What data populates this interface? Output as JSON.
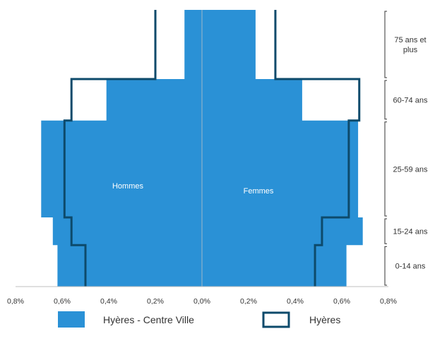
{
  "chart_data": {
    "type": "population-pyramid",
    "x_ticks": [
      "0,8%",
      "0,6%",
      "0,4%",
      "0,2%",
      "0,0%",
      "0,2%",
      "0,4%",
      "0,6%",
      "0,8%"
    ],
    "xlim": [
      -0.8,
      0.8
    ],
    "side_labels": {
      "left": "Hommes",
      "right": "Femmes"
    },
    "age_groups": [
      {
        "label": "75 ans et plus",
        "y_from": 75,
        "y_to": 100
      },
      {
        "label": "60-74 ans",
        "y_from": 60,
        "y_to": 75
      },
      {
        "label": "25-59 ans",
        "y_from": 25,
        "y_to": 60
      },
      {
        "label": "15-24 ans",
        "y_from": 15,
        "y_to": 25
      },
      {
        "label": "0-14 ans",
        "y_from": 0,
        "y_to": 15
      }
    ],
    "series": [
      {
        "name": "Hyères - Centre Ville",
        "style": "filled",
        "color": "#2a91d6",
        "men": [
          0.62,
          0.62,
          0.64,
          0.64,
          0.69,
          0.69,
          0.41,
          0.41,
          0.075,
          0.075
        ],
        "women": [
          0.62,
          0.62,
          0.69,
          0.69,
          0.67,
          0.67,
          0.43,
          0.43,
          0.23,
          0.23
        ]
      },
      {
        "name": "Hyères",
        "style": "outline",
        "color": "#0d4a6b",
        "men": [
          0.5,
          0.5,
          0.56,
          0.56,
          0.59,
          0.59,
          0.56,
          0.56,
          0.2,
          0.2
        ],
        "women": [
          0.485,
          0.485,
          0.515,
          0.515,
          0.63,
          0.63,
          0.675,
          0.675,
          0.315,
          0.315
        ]
      }
    ],
    "y_steps": [
      0,
      15,
      15,
      25,
      25,
      60,
      60,
      75,
      75,
      100
    ],
    "legend_position": "bottom",
    "grid": false
  }
}
